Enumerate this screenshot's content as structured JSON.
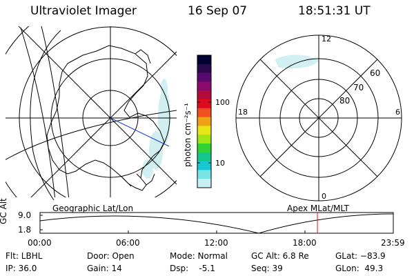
{
  "header": {
    "title": "Ultraviolet Imager",
    "date": "16 Sep 07",
    "time": "18:51:31 UT"
  },
  "colorbar": {
    "unit_label": "photon cm⁻²s⁻¹",
    "ticks": [
      "100",
      "10"
    ],
    "colors": [
      "#000033",
      "#2a0a4a",
      "#5a0a6e",
      "#8a0a6e",
      "#b30a3c",
      "#e00a1e",
      "#f0501e",
      "#f0a014",
      "#e6e614",
      "#a0e614",
      "#32d232",
      "#14c88c",
      "#14c8d2",
      "#78e6e6",
      "#c8f0f0"
    ]
  },
  "geo_panel": {
    "label": "Geographic Lat/Lon"
  },
  "apex_panel": {
    "label": "Apex MLat/MLT",
    "mlt_labels": {
      "top": "12",
      "bottom": "0",
      "left": "18",
      "right": "6"
    },
    "lat_labels": [
      "80",
      "70",
      "60"
    ]
  },
  "altitude_plot": {
    "axis_label": "GC Alt",
    "y_ticks": [
      "9.0",
      "1.8"
    ],
    "x_ticks": [
      "00:00",
      "06:00",
      "12:00",
      "18:00",
      "23:59"
    ],
    "marker_color": "#ff0000"
  },
  "info": {
    "flt": "Flt: LBHL",
    "ip": "IP: 36.0",
    "door": "Door: Open",
    "gain": "Gain: 14",
    "mode": "Mode: Normal",
    "dsp": "Dsp:    -5.1",
    "gc_alt": "GC Alt: 6.8 Re",
    "seq": "Seq: 39",
    "glat": "GLat: −83.9",
    "glon": "GLon:  49.3"
  }
}
